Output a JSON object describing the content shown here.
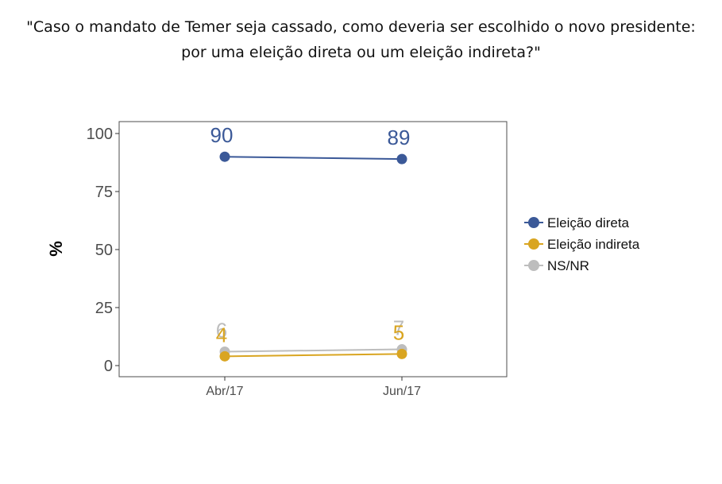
{
  "title": {
    "line1": "\"Caso o mandato de Temer seja cassado, como deveria ser escolhido o novo presidente:",
    "line2": "por uma eleição direta ou um eleição indireta?\""
  },
  "chart_data": {
    "type": "line",
    "x": [
      "Abr/17",
      "Jun/17"
    ],
    "ylabel": "%",
    "xlabel": "",
    "ylim": [
      0,
      100
    ],
    "yticks": [
      0,
      25,
      50,
      75,
      100
    ],
    "grid": false,
    "legend_position": "right",
    "series": [
      {
        "name": "Eleição direta",
        "values": [
          90,
          89
        ],
        "color": "#3b5998"
      },
      {
        "name": "Eleição indireta",
        "values": [
          4,
          5
        ],
        "color": "#d9a521"
      },
      {
        "name": "NS/NR",
        "values": [
          6,
          7
        ],
        "color": "#bdbdbd"
      }
    ]
  }
}
